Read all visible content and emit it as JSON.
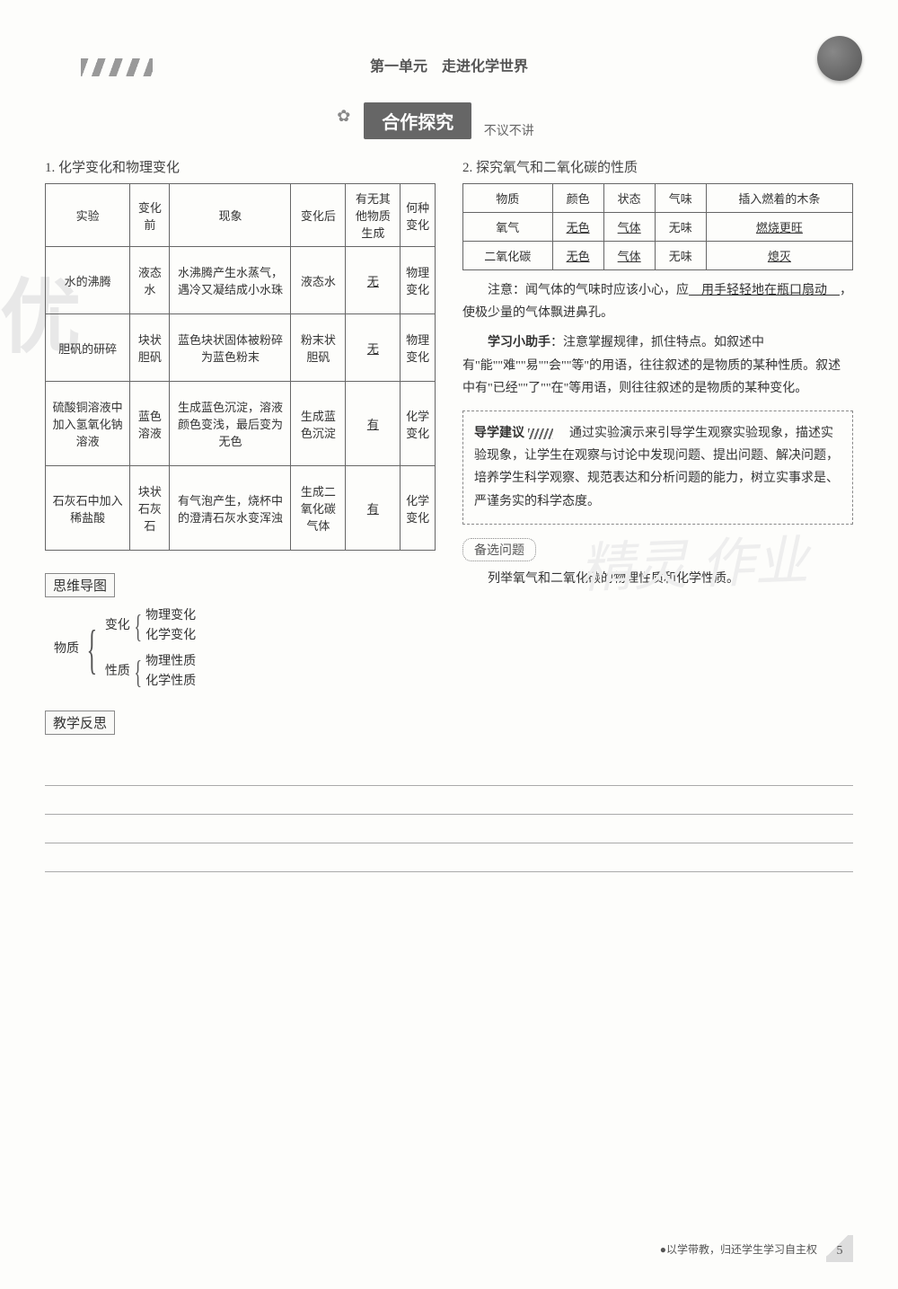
{
  "header": {
    "title": "第一单元　走进化学世界"
  },
  "banner": {
    "main": "合作探究",
    "sub": "不议不讲"
  },
  "section1": {
    "title": "1. 化学变化和物理变化",
    "headers": [
      "实验",
      "变化前",
      "现象",
      "变化后",
      "有无其他物质生成",
      "何种变化"
    ],
    "rows": [
      {
        "c1": "水的沸腾",
        "c2": "液态水",
        "c3": "水沸腾产生水蒸气，遇冷又凝结成小水珠",
        "c4": "液态水",
        "c5": "无",
        "c6": "物理变化"
      },
      {
        "c1": "胆矾的研碎",
        "c2": "块状胆矾",
        "c3": "蓝色块状固体被粉碎为蓝色粉末",
        "c4": "粉末状胆矾",
        "c5": "无",
        "c6": "物理变化"
      },
      {
        "c1": "硫酸铜溶液中加入氢氧化钠溶液",
        "c2": "蓝色溶液",
        "c3": "生成蓝色沉淀，溶液颜色变浅，最后变为无色",
        "c4": "生成蓝色沉淀",
        "c5": "有",
        "c6": "化学变化"
      },
      {
        "c1": "石灰石中加入稀盐酸",
        "c2": "块状石灰石",
        "c3": "有气泡产生，烧杯中的澄清石灰水变浑浊",
        "c4": "生成二氧化碳气体",
        "c5": "有",
        "c6": "化学变化"
      }
    ]
  },
  "section2": {
    "title": "2. 探究氧气和二氧化碳的性质",
    "headers": [
      "物质",
      "颜色",
      "状态",
      "气味",
      "插入燃着的木条"
    ],
    "rows": [
      {
        "c1": "氧气",
        "c2": "无色",
        "c3": "气体",
        "c4": "无味",
        "c5": "燃烧更旺"
      },
      {
        "c1": "二氧化碳",
        "c2": "无色",
        "c3": "气体",
        "c4": "无味",
        "c5": "熄灭"
      }
    ],
    "note_prefix": "注意：闻气体的气味时应该小心，应",
    "note_answer": "　用手轻轻地在瓶口扇动　",
    "note_suffix": "，使极少量的气体飘进鼻孔。",
    "helper_label": "学习小助手",
    "helper_text": "：注意掌握规律，抓住特点。如叙述中有\"能\"\"难\"\"易\"\"会\"\"等\"的用语，往往叙述的是物质的某种性质。叙述中有\"已经\"\"了\"\"在\"等用语，则往往叙述的是物质的某种变化。"
  },
  "guidance": {
    "label": "导学建议",
    "text": "　通过实验演示来引导学生观察实验现象，描述实验现象，让学生在观察与讨论中发现问题、提出问题、解决问题，培养学生科学观察、规范表达和分析问题的能力，树立实事求是、严谨务实的科学态度。"
  },
  "backup": {
    "label": "备选问题",
    "text": "列举氧气和二氧化碳的物理性质和化学性质。"
  },
  "mindmap": {
    "label": "思维导图",
    "root": "物质",
    "b1": "变化",
    "b1a": "物理变化",
    "b1b": "化学变化",
    "b2": "性质",
    "b2a": "物理性质",
    "b2b": "化学性质"
  },
  "reflection": {
    "label": "教学反思"
  },
  "footer": {
    "text": "●以学带教，归还学生学习自主权",
    "page": "5"
  },
  "watermarks": {
    "left": "优",
    "right": "精灵\n作业"
  }
}
